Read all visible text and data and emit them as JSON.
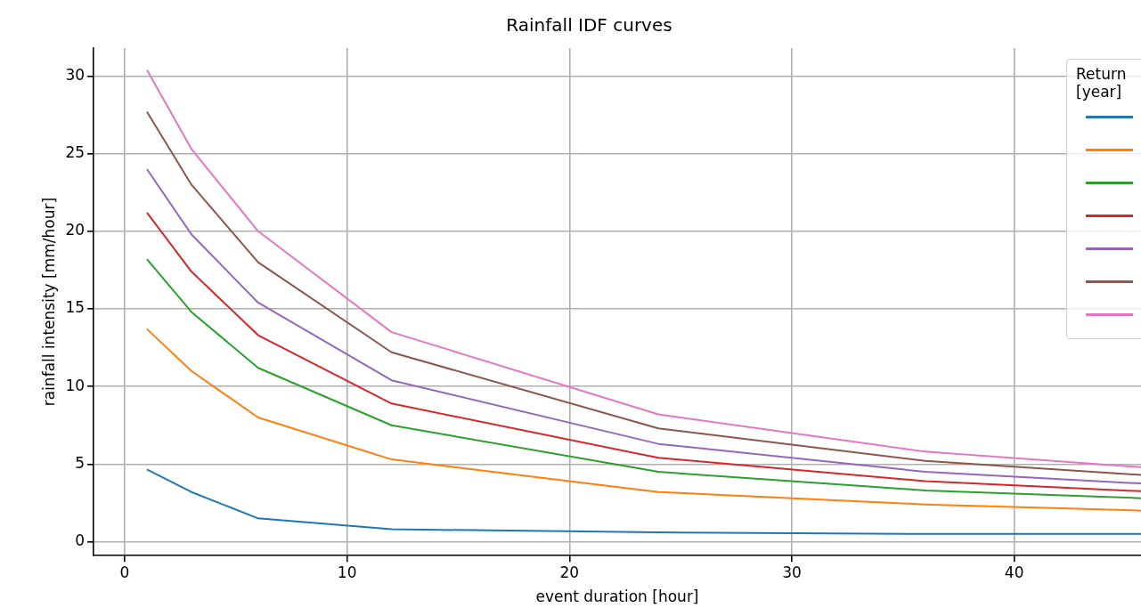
{
  "chart_data": {
    "type": "line",
    "title": "Rainfall IDF curves",
    "xlabel": "event duration [hour]",
    "ylabel": "rainfall intensity [mm/hour]",
    "legend_title": "Return\n[year]",
    "grid": true,
    "x": [
      1,
      3,
      6,
      12,
      24,
      36,
      45.7
    ],
    "xlim": [
      -1.4,
      45.7
    ],
    "xticks": [
      0,
      10,
      20,
      30,
      40
    ],
    "ylim": [
      -0.9,
      31.8
    ],
    "yticks": [
      0,
      5,
      10,
      15,
      20,
      25,
      30
    ],
    "series": [
      {
        "color": "#1f77b4",
        "values": [
          4.65,
          3.2,
          1.5,
          0.8,
          0.6,
          0.5,
          0.5
        ]
      },
      {
        "color": "#ff7f0e",
        "values": [
          13.7,
          11.0,
          8.0,
          5.3,
          3.2,
          2.4,
          2.0
        ]
      },
      {
        "color": "#2ca02c",
        "values": [
          18.2,
          14.8,
          11.2,
          7.5,
          4.5,
          3.3,
          2.8
        ]
      },
      {
        "color": "#d62728",
        "values": [
          21.2,
          17.4,
          13.3,
          8.9,
          5.4,
          3.9,
          3.25
        ]
      },
      {
        "color": "#9467bd",
        "values": [
          24.0,
          19.8,
          15.4,
          10.4,
          6.3,
          4.5,
          3.75
        ]
      },
      {
        "color": "#8c564b",
        "values": [
          27.7,
          23.0,
          18.0,
          12.2,
          7.3,
          5.2,
          4.3
        ]
      },
      {
        "color": "#e377c2",
        "values": [
          30.4,
          25.3,
          20.0,
          13.5,
          8.2,
          5.8,
          4.8
        ]
      }
    ]
  }
}
